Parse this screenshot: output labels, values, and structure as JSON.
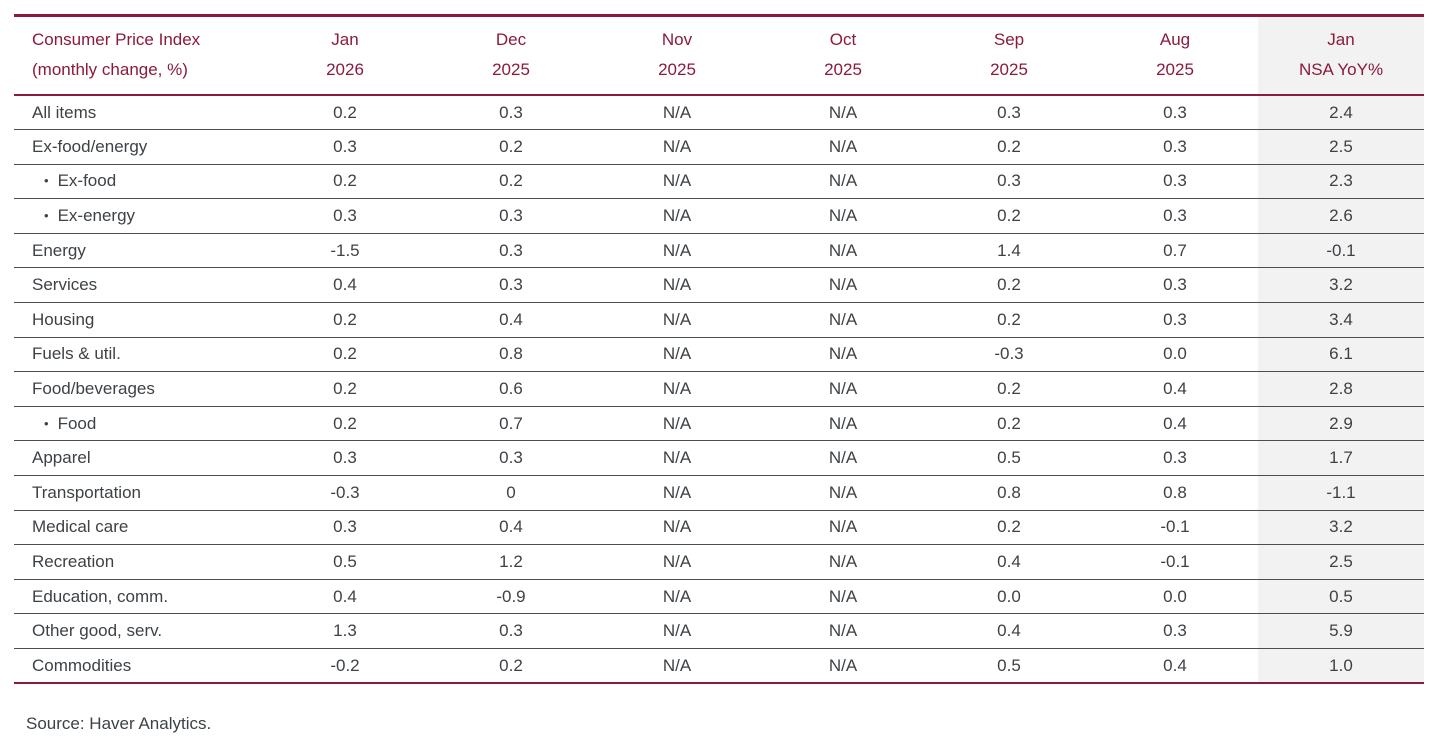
{
  "table": {
    "title_line1": "Consumer Price Index",
    "title_line2": "(monthly change, %)",
    "columns": [
      {
        "line1": "Jan",
        "line2": "2026",
        "shaded": false
      },
      {
        "line1": "Dec",
        "line2": "2025",
        "shaded": false
      },
      {
        "line1": "Nov",
        "line2": "2025",
        "shaded": false
      },
      {
        "line1": "Oct",
        "line2": "2025",
        "shaded": false
      },
      {
        "line1": "Sep",
        "line2": "2025",
        "shaded": false
      },
      {
        "line1": "Aug",
        "line2": "2025",
        "shaded": false
      },
      {
        "line1": "Jan",
        "line2": "NSA YoY%",
        "shaded": true
      }
    ],
    "rows": [
      {
        "label": "All items",
        "indent": false,
        "values": [
          "0.2",
          "0.3",
          "N/A",
          "N/A",
          "0.3",
          "0.3",
          "2.4"
        ]
      },
      {
        "label": "Ex-food/energy",
        "indent": false,
        "values": [
          "0.3",
          "0.2",
          "N/A",
          "N/A",
          "0.2",
          "0.3",
          "2.5"
        ]
      },
      {
        "label": "Ex-food",
        "indent": true,
        "values": [
          "0.2",
          "0.2",
          "N/A",
          "N/A",
          "0.3",
          "0.3",
          "2.3"
        ]
      },
      {
        "label": "Ex-energy",
        "indent": true,
        "values": [
          "0.3",
          "0.3",
          "N/A",
          "N/A",
          "0.2",
          "0.3",
          "2.6"
        ]
      },
      {
        "label": "Energy",
        "indent": false,
        "values": [
          "-1.5",
          "0.3",
          "N/A",
          "N/A",
          "1.4",
          "0.7",
          "-0.1"
        ]
      },
      {
        "label": "Services",
        "indent": false,
        "values": [
          "0.4",
          "0.3",
          "N/A",
          "N/A",
          "0.2",
          "0.3",
          "3.2"
        ]
      },
      {
        "label": "Housing",
        "indent": false,
        "values": [
          "0.2",
          "0.4",
          "N/A",
          "N/A",
          "0.2",
          "0.3",
          "3.4"
        ]
      },
      {
        "label": "Fuels & util.",
        "indent": false,
        "values": [
          "0.2",
          "0.8",
          "N/A",
          "N/A",
          "-0.3",
          "0.0",
          "6.1"
        ]
      },
      {
        "label": "Food/beverages",
        "indent": false,
        "values": [
          "0.2",
          "0.6",
          "N/A",
          "N/A",
          "0.2",
          "0.4",
          "2.8"
        ]
      },
      {
        "label": "Food",
        "indent": true,
        "values": [
          "0.2",
          "0.7",
          "N/A",
          "N/A",
          "0.2",
          "0.4",
          "2.9"
        ]
      },
      {
        "label": "Apparel",
        "indent": false,
        "values": [
          "0.3",
          "0.3",
          "N/A",
          "N/A",
          "0.5",
          "0.3",
          "1.7"
        ]
      },
      {
        "label": "Transportation",
        "indent": false,
        "values": [
          "-0.3",
          "0",
          "N/A",
          "N/A",
          "0.8",
          "0.8",
          "-1.1"
        ]
      },
      {
        "label": "Medical care",
        "indent": false,
        "values": [
          "0.3",
          "0.4",
          "N/A",
          "N/A",
          "0.2",
          "-0.1",
          "3.2"
        ]
      },
      {
        "label": "Recreation",
        "indent": false,
        "values": [
          "0.5",
          "1.2",
          "N/A",
          "N/A",
          "0.4",
          "-0.1",
          "2.5"
        ]
      },
      {
        "label": "Education, comm.",
        "indent": false,
        "values": [
          "0.4",
          "-0.9",
          "N/A",
          "N/A",
          "0.0",
          "0.0",
          "0.5"
        ]
      },
      {
        "label": "Other good, serv.",
        "indent": false,
        "values": [
          "1.3",
          "0.3",
          "N/A",
          "N/A",
          "0.4",
          "0.3",
          "5.9"
        ]
      },
      {
        "label": "Commodities",
        "indent": false,
        "values": [
          "-0.2",
          "0.2",
          "N/A",
          "N/A",
          "0.5",
          "0.4",
          "1.0"
        ]
      }
    ]
  },
  "source": "Source: Haver Analytics.",
  "bullet_glyph": "•",
  "colors": {
    "accent": "#8B1A3B",
    "row_line": "#4A4F53",
    "shaded_column_bg": "#F2F2F2",
    "text": "#3D4246"
  },
  "chart_data": {
    "type": "table",
    "title": "Consumer Price Index (monthly change, %)",
    "columns": [
      "Jan 2026",
      "Dec 2025",
      "Nov 2025",
      "Oct 2025",
      "Sep 2025",
      "Aug 2025",
      "Jan NSA YoY%"
    ],
    "rows": [
      {
        "category": "All items",
        "values": [
          "0.2",
          "0.3",
          "N/A",
          "N/A",
          "0.3",
          "0.3",
          "2.4"
        ]
      },
      {
        "category": "Ex-food/energy",
        "values": [
          "0.3",
          "0.2",
          "N/A",
          "N/A",
          "0.2",
          "0.3",
          "2.5"
        ]
      },
      {
        "category": "Ex-food",
        "values": [
          "0.2",
          "0.2",
          "N/A",
          "N/A",
          "0.3",
          "0.3",
          "2.3"
        ]
      },
      {
        "category": "Ex-energy",
        "values": [
          "0.3",
          "0.3",
          "N/A",
          "N/A",
          "0.2",
          "0.3",
          "2.6"
        ]
      },
      {
        "category": "Energy",
        "values": [
          "-1.5",
          "0.3",
          "N/A",
          "N/A",
          "1.4",
          "0.7",
          "-0.1"
        ]
      },
      {
        "category": "Services",
        "values": [
          "0.4",
          "0.3",
          "N/A",
          "N/A",
          "0.2",
          "0.3",
          "3.2"
        ]
      },
      {
        "category": "Housing",
        "values": [
          "0.2",
          "0.4",
          "N/A",
          "N/A",
          "0.2",
          "0.3",
          "3.4"
        ]
      },
      {
        "category": "Fuels & util.",
        "values": [
          "0.2",
          "0.8",
          "N/A",
          "N/A",
          "-0.3",
          "0.0",
          "6.1"
        ]
      },
      {
        "category": "Food/beverages",
        "values": [
          "0.2",
          "0.6",
          "N/A",
          "N/A",
          "0.2",
          "0.4",
          "2.8"
        ]
      },
      {
        "category": "Food",
        "values": [
          "0.2",
          "0.7",
          "N/A",
          "N/A",
          "0.2",
          "0.4",
          "2.9"
        ]
      },
      {
        "category": "Apparel",
        "values": [
          "0.3",
          "0.3",
          "N/A",
          "N/A",
          "0.5",
          "0.3",
          "1.7"
        ]
      },
      {
        "category": "Transportation",
        "values": [
          "-0.3",
          "0",
          "N/A",
          "N/A",
          "0.8",
          "0.8",
          "-1.1"
        ]
      },
      {
        "category": "Medical care",
        "values": [
          "0.3",
          "0.4",
          "N/A",
          "N/A",
          "0.2",
          "-0.1",
          "3.2"
        ]
      },
      {
        "category": "Recreation",
        "values": [
          "0.5",
          "1.2",
          "N/A",
          "N/A",
          "0.4",
          "-0.1",
          "2.5"
        ]
      },
      {
        "category": "Education, comm.",
        "values": [
          "0.4",
          "-0.9",
          "N/A",
          "N/A",
          "0.0",
          "0.0",
          "0.5"
        ]
      },
      {
        "category": "Other good, serv.",
        "values": [
          "1.3",
          "0.3",
          "N/A",
          "N/A",
          "0.4",
          "0.3",
          "5.9"
        ]
      },
      {
        "category": "Commodities",
        "values": [
          "-0.2",
          "0.2",
          "N/A",
          "N/A",
          "0.5",
          "0.4",
          "1.0"
        ]
      }
    ],
    "source_note": "Source: Haver Analytics.",
    "notes": "Last column (Jan NSA YoY%) is shaded light gray; header text and horizontal rules above/below header and at table bottom are maroon; indented bulleted sub-rows: Ex-food, Ex-energy, Food"
  }
}
